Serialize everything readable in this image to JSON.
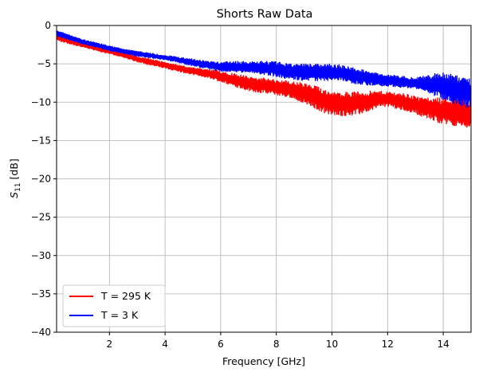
{
  "chart_data": {
    "type": "line",
    "title": "Shorts Raw Data",
    "xlabel": "Frequency [GHz]",
    "ylabel_main": "S",
    "ylabel_sub": "11",
    "ylabel_unit": " [dB]",
    "xlim": [
      0.1,
      15.0
    ],
    "ylim": [
      -40,
      0
    ],
    "x_ticks": [
      2,
      4,
      6,
      8,
      10,
      12,
      14
    ],
    "x_tick_labels": [
      "2",
      "4",
      "6",
      "8",
      "10",
      "12",
      "14"
    ],
    "y_ticks": [
      0,
      -5,
      -10,
      -15,
      -20,
      -25,
      -30,
      -35,
      -40
    ],
    "y_tick_labels": [
      "0",
      "−5",
      "−10",
      "−15",
      "−20",
      "−25",
      "−30",
      "−35",
      "−40"
    ],
    "grid": true,
    "legend_position": "lower-left",
    "series": [
      {
        "name": "T = 295 K",
        "color": "#ff0000",
        "style": "oscillating",
        "x": [
          0.1,
          1,
          2,
          3,
          4,
          5,
          6,
          7,
          8,
          9,
          10,
          11,
          12,
          13,
          14,
          15
        ],
        "envelope_upper": [
          -1.0,
          -2.0,
          -3.0,
          -4.0,
          -4.6,
          -5.5,
          -5.9,
          -6.3,
          -7.0,
          -7.5,
          -8.0,
          -8.5,
          -8.6,
          -8.8,
          -9.2,
          -9.5
        ],
        "envelope_lower": [
          -2.0,
          -2.8,
          -3.8,
          -4.8,
          -5.6,
          -6.5,
          -7.5,
          -8.5,
          -9.2,
          -10.5,
          -11.8,
          -11.8,
          -10.8,
          -11.5,
          -13.0,
          -14.3
        ]
      },
      {
        "name": "T = 3 K",
        "color": "#0000ff",
        "style": "oscillating",
        "x": [
          0.1,
          1,
          2,
          3,
          4,
          5,
          6,
          7,
          8,
          9,
          10,
          11,
          12,
          13,
          14,
          15
        ],
        "envelope_upper": [
          -0.6,
          -1.8,
          -2.6,
          -3.3,
          -3.9,
          -4.3,
          -4.6,
          -4.7,
          -4.6,
          -4.7,
          -5.0,
          -5.5,
          -6.2,
          -6.8,
          -6.0,
          -6.1
        ],
        "envelope_lower": [
          -1.4,
          -2.5,
          -3.3,
          -4.0,
          -4.6,
          -5.3,
          -6.0,
          -6.4,
          -6.8,
          -7.2,
          -7.5,
          -7.8,
          -7.9,
          -8.4,
          -10.0,
          -10.8
        ]
      }
    ]
  }
}
